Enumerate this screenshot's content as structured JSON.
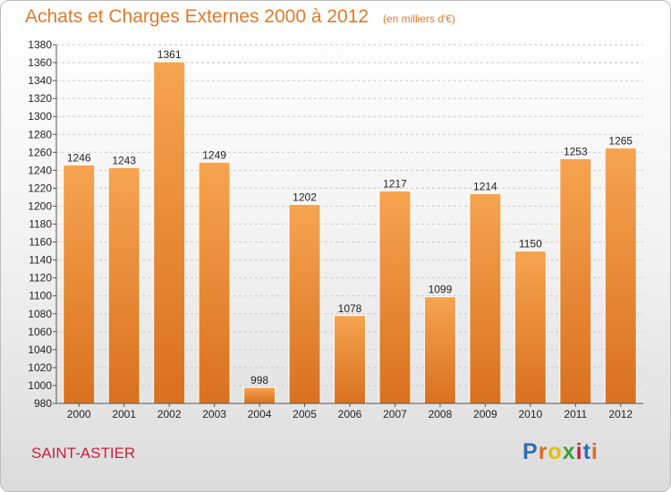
{
  "header": {
    "title": "Achats et Charges Externes 2000 à 2012",
    "subtitle": "(en milliers d'€)"
  },
  "place": "SAINT-ASTIER",
  "logo": {
    "text": "Proxiti",
    "colors": [
      "#2c6fb5",
      "#e06b1f",
      "#e5c100",
      "#3aa23a",
      "#c8213e",
      "#2c6fb5",
      "#e06b1f"
    ]
  },
  "colors": {
    "bar_top": "#f6a450",
    "bar_bottom": "#d9711f",
    "text_accent": "#e07a2a",
    "place": "#c8213e"
  },
  "chart_data": {
    "type": "bar",
    "categories": [
      "2000",
      "2001",
      "2002",
      "2003",
      "2004",
      "2005",
      "2006",
      "2007",
      "2008",
      "2009",
      "2010",
      "2011",
      "2012"
    ],
    "values": [
      1246,
      1243,
      1361,
      1249,
      998,
      1202,
      1078,
      1217,
      1099,
      1214,
      1150,
      1253,
      1265
    ],
    "title": "Achats et Charges Externes 2000 à 2012",
    "subtitle": "(en milliers d'€)",
    "xlabel": "",
    "ylabel": "",
    "ylim": [
      980,
      1380
    ],
    "ytick_step": 20,
    "grid": true,
    "legend": "none"
  }
}
